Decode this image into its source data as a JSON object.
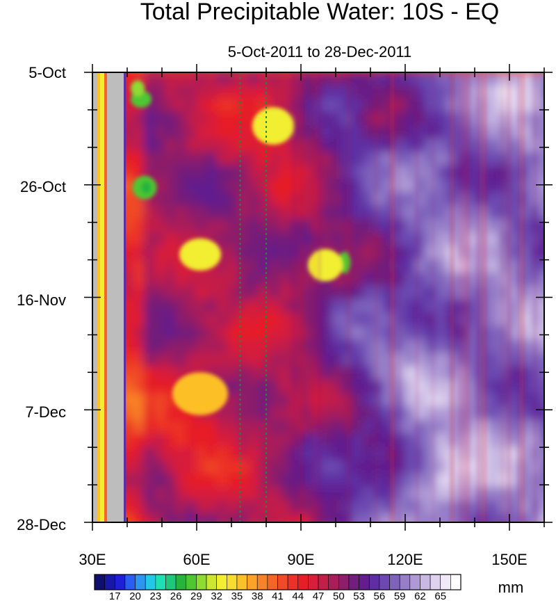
{
  "chart_data": {
    "type": "heatmap",
    "title": "Total Precipitable Water: 10S - EQ",
    "subtitle": "5-Oct-2011 to 28-Dec-2011",
    "x_ticks": [
      {
        "value": 30,
        "label": "30E"
      },
      {
        "value": 60,
        "label": "60E"
      },
      {
        "value": 90,
        "label": "90E"
      },
      {
        "value": 120,
        "label": "120E"
      },
      {
        "value": 150,
        "label": "150E"
      }
    ],
    "xlim": [
      30,
      160
    ],
    "y_ticks": [
      {
        "value": 0,
        "label": "5-Oct"
      },
      {
        "value": 21,
        "label": "26-Oct"
      },
      {
        "value": 42,
        "label": "16-Nov"
      },
      {
        "value": 63,
        "label": "7-Dec"
      },
      {
        "value": 84,
        "label": "28-Dec"
      }
    ],
    "ylim": [
      0,
      84
    ],
    "reference_lines_lon": [
      72.5,
      80
    ],
    "land_mask_lon": [
      [
        30.1,
        31.4
      ],
      [
        34.2,
        39
      ]
    ],
    "colorbar": {
      "unit": "mm",
      "labels": [
        "17",
        "20",
        "23",
        "26",
        "29",
        "32",
        "35",
        "38",
        "41",
        "44",
        "47",
        "50",
        "53",
        "56",
        "59",
        "62",
        "65"
      ],
      "colors": [
        "#0f0f6e",
        "#1818a8",
        "#1f1fd8",
        "#2a5ef2",
        "#2e96f2",
        "#22c8e6",
        "#1ee0b4",
        "#1ec87a",
        "#28b43c",
        "#4ec832",
        "#8edc32",
        "#cce632",
        "#f2ee32",
        "#f8dc32",
        "#fcc028",
        "#fca228",
        "#f88228",
        "#f46628",
        "#f04a28",
        "#ec3228",
        "#e61e28",
        "#d81e3a",
        "#c21e48",
        "#a81e5a",
        "#8c1e6a",
        "#721e7c",
        "#621e8e",
        "#5e2ea2",
        "#6c48b0",
        "#7e62bc",
        "#967ec8",
        "#b09ad6",
        "#c8b8e2",
        "#ded2ee",
        "#f0eaf8",
        "#ffffff"
      ]
    }
  }
}
